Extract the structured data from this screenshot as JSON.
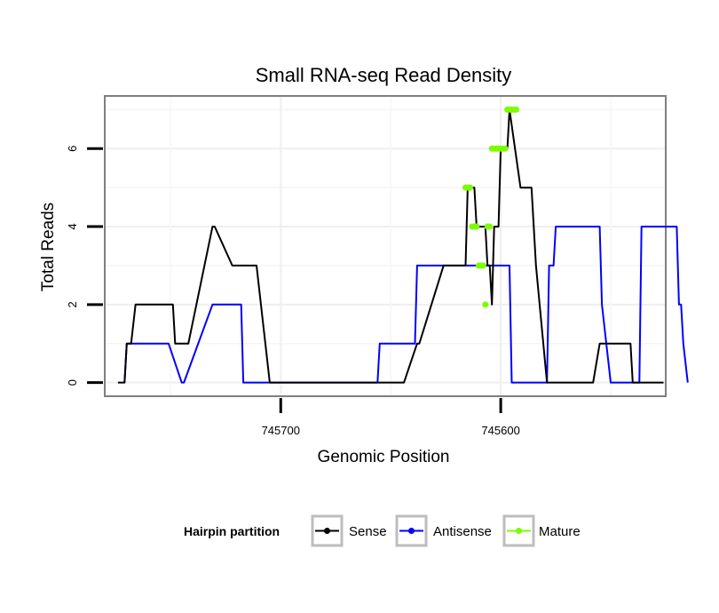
{
  "chart_data": {
    "type": "line",
    "title": "Small RNA-seq Read Density",
    "xlabel": "Genomic Position",
    "ylabel": "Total Reads",
    "x_reversed": true,
    "xlim": [
      745780,
      745525
    ],
    "ylim": [
      -0.35,
      7.35
    ],
    "x_ticks": [
      745700,
      745600
    ],
    "x_tick_labels": [
      "745700",
      "745600"
    ],
    "y_ticks": [
      0,
      2,
      4,
      6
    ],
    "y_tick_labels": [
      "0",
      "2",
      "4",
      "6"
    ],
    "grid": true,
    "legend": {
      "title": "Hairpin partition",
      "position": "bottom",
      "entries": [
        {
          "label": "Sense",
          "color": "#000000"
        },
        {
          "label": "Antisense",
          "color": "#0000ff"
        },
        {
          "label": "Mature",
          "color": "#7cfc00"
        }
      ]
    },
    "series": [
      {
        "name": "Sense",
        "color": "#000000",
        "x": [
          745774,
          745771,
          745770,
          745768,
          745766,
          745749,
          745748,
          745742,
          745731,
          745730,
          745722,
          745720,
          745713,
          745711,
          745705,
          745704,
          745646,
          745644,
          745638,
          745637,
          745626,
          745625,
          745617,
          745616,
          745615,
          745612,
          745611,
          745610,
          745609,
          745608,
          745607,
          745606,
          745605,
          745604,
          745603,
          745602,
          745601,
          745600,
          745599,
          745598,
          745597,
          745596,
          745591,
          745590,
          745589,
          745588,
          745586,
          745585,
          745584,
          745579,
          745577,
          745576,
          745574,
          745558,
          745555,
          745549,
          745541,
          745540,
          745532,
          745531,
          745526
        ],
        "y": [
          0,
          0,
          1,
          1,
          2,
          2,
          1,
          1,
          4,
          4,
          3,
          3,
          3,
          3,
          0,
          0,
          0,
          0,
          1,
          1,
          3,
          3,
          3,
          3,
          5,
          5,
          4,
          4,
          4,
          4,
          4,
          3,
          3,
          2,
          4,
          4,
          4,
          6,
          6,
          6,
          6,
          7,
          5,
          5,
          5,
          5,
          5,
          4,
          3,
          0,
          0,
          0,
          0,
          0,
          1,
          1,
          1,
          0,
          0,
          0,
          0
        ]
      },
      {
        "name": "Antisense",
        "color": "#0000ff",
        "x": [
          745771,
          745770,
          745768,
          745752,
          745751,
          745745,
          745744,
          745731,
          745730,
          745718,
          745717,
          745656,
          745655,
          745648,
          745647,
          745639,
          745638,
          745613,
          745612,
          745596,
          745595,
          745590,
          745589,
          745579,
          745578,
          745576,
          745575,
          745575,
          745556,
          745555,
          745555,
          745554,
          745550,
          745546,
          745545,
          745537,
          745536,
          745520,
          745519,
          745518,
          745517,
          745515
        ],
        "y": [
          0,
          1,
          1,
          1,
          1,
          0,
          0,
          2,
          2,
          2,
          0,
          0,
          1,
          1,
          1,
          1,
          3,
          3,
          3,
          3,
          0,
          0,
          0,
          0,
          3,
          3,
          4,
          4,
          4,
          4,
          4,
          2,
          0,
          0,
          0,
          0,
          4,
          4,
          2,
          2,
          1,
          0
        ]
      },
      {
        "name": "Mature",
        "color": "#7cfc00",
        "x": [
          745616,
          745615,
          745614,
          745613,
          745612,
          745611,
          745610,
          745609,
          745608,
          745607,
          745606,
          745605,
          745604,
          745603,
          745602,
          745601,
          745600,
          745599,
          745598,
          745597,
          745596,
          745595,
          745594,
          745593
        ],
        "y": [
          5,
          5,
          5,
          4,
          4,
          4,
          3,
          3,
          3,
          2,
          4,
          4,
          6,
          6,
          6,
          6,
          6,
          6,
          6,
          7,
          7,
          7,
          7,
          7
        ]
      }
    ]
  }
}
